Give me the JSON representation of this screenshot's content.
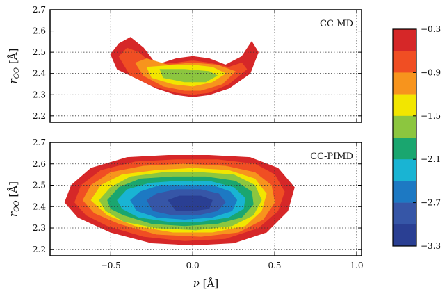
{
  "chart_data": {
    "type": "heatmap",
    "x_label": "ν [Å]",
    "x_ticks": [
      "−0.5",
      "0.0",
      "0.5",
      "1.0"
    ],
    "x_tick_values": [
      -0.5,
      0.0,
      0.5,
      1.0
    ],
    "x_range": [
      -0.87,
      1.03
    ],
    "shared_x_axis": true,
    "y_label": "r_OO [Å]",
    "y_ticks": [
      "2.2",
      "2.3",
      "2.4",
      "2.5",
      "2.6",
      "2.7"
    ],
    "y_tick_values": [
      2.2,
      2.3,
      2.4,
      2.5,
      2.6,
      2.7
    ],
    "y_range": [
      2.17,
      2.7
    ],
    "grid": "dotted",
    "panels": [
      {
        "label": "CC-MD",
        "bounds": {
          "x_min": -0.5,
          "x_max": 0.4,
          "y_min": 2.29,
          "y_max": 2.57
        },
        "valley": {
          "x": 0.0,
          "y": 2.39
        },
        "contours": [
          {
            "level": -0.3,
            "color": "#d62728",
            "points": [
              [
                -0.5,
                2.49
              ],
              [
                -0.45,
                2.54
              ],
              [
                -0.38,
                2.57
              ],
              [
                -0.3,
                2.52
              ],
              [
                -0.22,
                2.44
              ],
              [
                -0.1,
                2.47
              ],
              [
                0.0,
                2.48
              ],
              [
                0.1,
                2.47
              ],
              [
                0.2,
                2.44
              ],
              [
                0.3,
                2.48
              ],
              [
                0.36,
                2.55
              ],
              [
                0.4,
                2.5
              ],
              [
                0.35,
                2.4
              ],
              [
                0.22,
                2.33
              ],
              [
                0.1,
                2.3
              ],
              [
                0.0,
                2.29
              ],
              [
                -0.1,
                2.3
              ],
              [
                -0.22,
                2.33
              ],
              [
                -0.35,
                2.38
              ],
              [
                -0.46,
                2.42
              ]
            ]
          },
          {
            "level": -0.6,
            "color": "#f04e23",
            "points": [
              [
                -0.45,
                2.48
              ],
              [
                -0.4,
                2.52
              ],
              [
                -0.33,
                2.5
              ],
              [
                -0.24,
                2.44
              ],
              [
                -0.1,
                2.45
              ],
              [
                0.0,
                2.46
              ],
              [
                0.1,
                2.45
              ],
              [
                0.22,
                2.43
              ],
              [
                0.3,
                2.45
              ],
              [
                0.33,
                2.42
              ],
              [
                0.22,
                2.35
              ],
              [
                0.1,
                2.31
              ],
              [
                0.0,
                2.3
              ],
              [
                -0.1,
                2.31
              ],
              [
                -0.24,
                2.34
              ],
              [
                -0.38,
                2.39
              ]
            ]
          },
          {
            "level": -0.9,
            "color": "#f7941d",
            "points": [
              [
                -0.35,
                2.45
              ],
              [
                -0.28,
                2.47
              ],
              [
                -0.15,
                2.44
              ],
              [
                0.0,
                2.45
              ],
              [
                0.15,
                2.44
              ],
              [
                0.26,
                2.41
              ],
              [
                0.18,
                2.35
              ],
              [
                0.05,
                2.32
              ],
              [
                -0.05,
                2.32
              ],
              [
                -0.18,
                2.34
              ],
              [
                -0.3,
                2.39
              ]
            ]
          },
          {
            "level": -1.2,
            "color": "#f2e600",
            "points": [
              [
                -0.28,
                2.43
              ],
              [
                -0.1,
                2.44
              ],
              [
                0.0,
                2.44
              ],
              [
                0.12,
                2.43
              ],
              [
                0.2,
                2.4
              ],
              [
                0.12,
                2.36
              ],
              [
                0.0,
                2.34
              ],
              [
                -0.12,
                2.35
              ],
              [
                -0.25,
                2.38
              ]
            ]
          },
          {
            "level": -1.5,
            "color": "#8cc63f",
            "points": [
              [
                -0.2,
                2.42
              ],
              [
                -0.05,
                2.42
              ],
              [
                0.1,
                2.41
              ],
              [
                0.15,
                2.39
              ],
              [
                0.08,
                2.36
              ],
              [
                -0.05,
                2.36
              ],
              [
                -0.18,
                2.38
              ]
            ]
          }
        ]
      },
      {
        "label": "CC-PIMD",
        "bounds": {
          "x_min": -0.78,
          "x_max": 0.62,
          "y_min": 2.22,
          "y_max": 2.64
        },
        "valley": {
          "x": 0.0,
          "y": 2.41
        },
        "contours": [
          {
            "level": -0.3,
            "color": "#d62728",
            "points": [
              [
                -0.78,
                2.42
              ],
              [
                -0.74,
                2.5
              ],
              [
                -0.62,
                2.58
              ],
              [
                -0.4,
                2.63
              ],
              [
                -0.15,
                2.64
              ],
              [
                0.1,
                2.64
              ],
              [
                0.35,
                2.63
              ],
              [
                0.52,
                2.58
              ],
              [
                0.62,
                2.49
              ],
              [
                0.58,
                2.38
              ],
              [
                0.45,
                2.28
              ],
              [
                0.25,
                2.23
              ],
              [
                0.0,
                2.22
              ],
              [
                -0.25,
                2.23
              ],
              [
                -0.5,
                2.28
              ],
              [
                -0.7,
                2.35
              ]
            ]
          },
          {
            "level": -0.6,
            "color": "#f04e23",
            "points": [
              [
                -0.72,
                2.42
              ],
              [
                -0.68,
                2.5
              ],
              [
                -0.56,
                2.57
              ],
              [
                -0.35,
                2.61
              ],
              [
                -0.1,
                2.62
              ],
              [
                0.15,
                2.62
              ],
              [
                0.38,
                2.6
              ],
              [
                0.5,
                2.55
              ],
              [
                0.56,
                2.47
              ],
              [
                0.52,
                2.38
              ],
              [
                0.4,
                2.3
              ],
              [
                0.2,
                2.25
              ],
              [
                -0.05,
                2.24
              ],
              [
                -0.3,
                2.26
              ],
              [
                -0.52,
                2.31
              ],
              [
                -0.65,
                2.36
              ]
            ]
          },
          {
            "level": -0.9,
            "color": "#f7941d",
            "points": [
              [
                -0.67,
                2.43
              ],
              [
                -0.62,
                2.5
              ],
              [
                -0.5,
                2.56
              ],
              [
                -0.3,
                2.59
              ],
              [
                -0.05,
                2.6
              ],
              [
                0.2,
                2.59
              ],
              [
                0.38,
                2.56
              ],
              [
                0.48,
                2.5
              ],
              [
                0.5,
                2.42
              ],
              [
                0.43,
                2.34
              ],
              [
                0.28,
                2.28
              ],
              [
                0.05,
                2.26
              ],
              [
                -0.22,
                2.27
              ],
              [
                -0.45,
                2.32
              ],
              [
                -0.6,
                2.37
              ]
            ]
          },
          {
            "level": -1.2,
            "color": "#f2e600",
            "points": [
              [
                -0.62,
                2.43
              ],
              [
                -0.56,
                2.5
              ],
              [
                -0.43,
                2.55
              ],
              [
                -0.22,
                2.57
              ],
              [
                0.0,
                2.58
              ],
              [
                0.22,
                2.57
              ],
              [
                0.38,
                2.53
              ],
              [
                0.45,
                2.46
              ],
              [
                0.42,
                2.38
              ],
              [
                0.32,
                2.31
              ],
              [
                0.12,
                2.28
              ],
              [
                -0.12,
                2.28
              ],
              [
                -0.35,
                2.31
              ],
              [
                -0.52,
                2.36
              ]
            ]
          },
          {
            "level": -1.5,
            "color": "#8cc63f",
            "points": [
              [
                -0.57,
                2.43
              ],
              [
                -0.5,
                2.49
              ],
              [
                -0.38,
                2.54
              ],
              [
                -0.18,
                2.56
              ],
              [
                0.05,
                2.56
              ],
              [
                0.25,
                2.55
              ],
              [
                0.38,
                2.5
              ],
              [
                0.42,
                2.43
              ],
              [
                0.37,
                2.36
              ],
              [
                0.24,
                2.31
              ],
              [
                0.02,
                2.29
              ],
              [
                -0.22,
                2.3
              ],
              [
                -0.42,
                2.33
              ],
              [
                -0.53,
                2.38
              ]
            ]
          },
          {
            "level": -1.8,
            "color": "#1aa66f",
            "points": [
              [
                -0.52,
                2.43
              ],
              [
                -0.45,
                2.49
              ],
              [
                -0.32,
                2.53
              ],
              [
                -0.12,
                2.54
              ],
              [
                0.08,
                2.54
              ],
              [
                0.26,
                2.52
              ],
              [
                0.36,
                2.47
              ],
              [
                0.37,
                2.41
              ],
              [
                0.3,
                2.35
              ],
              [
                0.15,
                2.32
              ],
              [
                -0.05,
                2.31
              ],
              [
                -0.25,
                2.32
              ],
              [
                -0.42,
                2.36
              ],
              [
                -0.5,
                2.39
              ]
            ]
          },
          {
            "level": -2.1,
            "color": "#19b4d3",
            "points": [
              [
                -0.46,
                2.43
              ],
              [
                -0.4,
                2.48
              ],
              [
                -0.26,
                2.51
              ],
              [
                -0.08,
                2.52
              ],
              [
                0.1,
                2.52
              ],
              [
                0.25,
                2.49
              ],
              [
                0.32,
                2.44
              ],
              [
                0.31,
                2.39
              ],
              [
                0.22,
                2.35
              ],
              [
                0.05,
                2.33
              ],
              [
                -0.15,
                2.33
              ],
              [
                -0.33,
                2.35
              ],
              [
                -0.43,
                2.39
              ]
            ]
          },
          {
            "level": -2.4,
            "color": "#1d79c3",
            "points": [
              [
                -0.38,
                2.43
              ],
              [
                -0.32,
                2.47
              ],
              [
                -0.2,
                2.5
              ],
              [
                -0.03,
                2.5
              ],
              [
                0.12,
                2.5
              ],
              [
                0.23,
                2.47
              ],
              [
                0.27,
                2.43
              ],
              [
                0.24,
                2.38
              ],
              [
                0.12,
                2.35
              ],
              [
                -0.05,
                2.34
              ],
              [
                -0.22,
                2.35
              ],
              [
                -0.34,
                2.38
              ]
            ]
          },
          {
            "level": -2.7,
            "color": "#3656a7",
            "points": [
              [
                -0.28,
                2.43
              ],
              [
                -0.22,
                2.46
              ],
              [
                -0.1,
                2.48
              ],
              [
                0.05,
                2.48
              ],
              [
                0.16,
                2.46
              ],
              [
                0.2,
                2.42
              ],
              [
                0.15,
                2.38
              ],
              [
                0.03,
                2.36
              ],
              [
                -0.12,
                2.36
              ],
              [
                -0.24,
                2.38
              ]
            ]
          },
          {
            "level": -3.0,
            "color": "#2a3f93",
            "points": [
              [
                -0.15,
                2.43
              ],
              [
                -0.08,
                2.45
              ],
              [
                0.05,
                2.45
              ],
              [
                0.12,
                2.43
              ],
              [
                0.1,
                2.39
              ],
              [
                0.0,
                2.38
              ],
              [
                -0.1,
                2.38
              ]
            ]
          }
        ]
      }
    ],
    "colorbar": {
      "range": [
        -3.3,
        -0.3
      ],
      "ticks": [
        "−0.3",
        "−0.9",
        "−1.5",
        "−2.1",
        "−2.7",
        "−3.3"
      ],
      "tick_values": [
        -0.3,
        -0.9,
        -1.5,
        -2.1,
        -2.7,
        -3.3
      ],
      "colors": [
        "#d62728",
        "#f04e23",
        "#f7941d",
        "#f2e600",
        "#8cc63f",
        "#1aa66f",
        "#19b4d3",
        "#1d79c3",
        "#3656a7",
        "#2a3f93"
      ]
    }
  }
}
